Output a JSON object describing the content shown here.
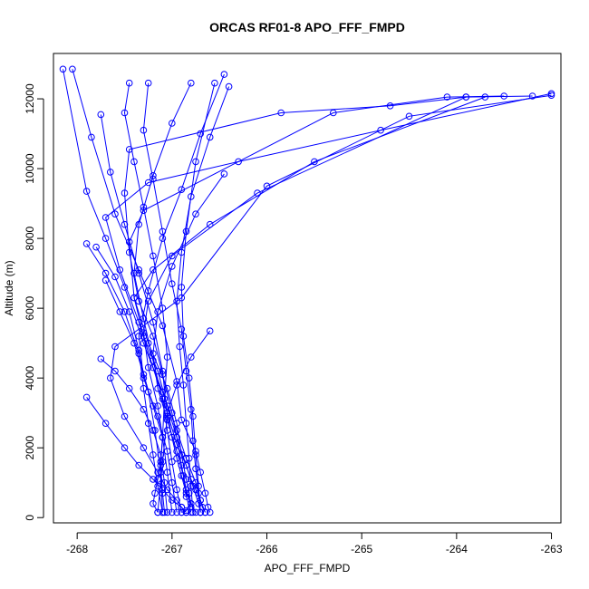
{
  "chart_data": {
    "type": "line",
    "title": "ORCAS RF01-8 APO_FFF_FMPD",
    "xlabel": "APO_FFF_FMPD",
    "ylabel": "Altitude (m)",
    "xlim": [
      -268.25,
      -262.9
    ],
    "ylim": [
      -150,
      13300
    ],
    "xticks": [
      -268,
      -267,
      -266,
      -265,
      -264,
      -263
    ],
    "yticks": [
      0,
      2000,
      4000,
      6000,
      8000,
      10000,
      12000
    ],
    "grid": false,
    "legend": "none",
    "colors": {
      "series": "#0000ff",
      "frame": "#000000",
      "background": "#ffffff"
    },
    "series": [
      {
        "x": [
          -268.05,
          -267.85,
          -267.6,
          -267.35,
          -267.1,
          -266.95,
          -266.9,
          -266.75,
          -266.7,
          -266.65,
          -266.62,
          -266.6
        ],
        "y": [
          12850,
          10900,
          8700,
          7100,
          5500,
          3900,
          2800,
          1900,
          1300,
          700,
          300,
          150
        ]
      },
      {
        "x": [
          -268.15,
          -267.9,
          -267.7,
          -267.5,
          -267.3,
          -267.1,
          -266.95,
          -266.85,
          -266.75,
          -266.7,
          -266.65
        ],
        "y": [
          12850,
          9350,
          8000,
          6600,
          5000,
          3600,
          2500,
          1700,
          1000,
          500,
          150
        ]
      },
      {
        "x": [
          -263.0,
          -264.8,
          -266.3,
          -267.25,
          -267.7,
          -267.55,
          -267.35,
          -267.2,
          -267.05,
          -266.95,
          -266.85,
          -266.8,
          -266.75,
          -266.7,
          -266.68,
          -266.65
        ],
        "y": [
          12150,
          11100,
          10200,
          9600,
          8600,
          7100,
          5600,
          4300,
          3000,
          2100,
          1500,
          1100,
          800,
          500,
          300,
          150
        ]
      },
      {
        "x": [
          -263.2,
          -263.9,
          -264.7,
          -265.85,
          -267.45,
          -267.5,
          -267.45,
          -267.35,
          -267.2,
          -267.1,
          -267.0,
          -266.95,
          -266.9,
          -266.85,
          -266.8
        ],
        "y": [
          12080,
          12050,
          11800,
          11600,
          10550,
          9300,
          7600,
          6200,
          5200,
          4100,
          3000,
          2300,
          1500,
          800,
          300
        ]
      },
      {
        "x": [
          -263.5,
          -264.1,
          -265.3,
          -267.3,
          -267.45,
          -267.4,
          -267.25,
          -267.05,
          -266.95,
          -266.9,
          -266.85,
          -266.82,
          -266.8,
          -266.85,
          -266.9
        ],
        "y": [
          12080,
          12050,
          11600,
          8800,
          7900,
          6300,
          5000,
          3700,
          2700,
          1800,
          1100,
          700,
          400,
          200,
          150
        ]
      },
      {
        "x": [
          -263.0,
          -264.5,
          -266.0,
          -266.9,
          -267.6,
          -267.65,
          -267.5,
          -267.3,
          -267.15,
          -267.05,
          -266.95,
          -266.9,
          -266.85
        ],
        "y": [
          12100,
          11500,
          9500,
          6300,
          4900,
          4000,
          2900,
          2000,
          1300,
          800,
          500,
          300,
          150
        ]
      },
      {
        "x": [
          -263.7,
          -265.5,
          -266.6,
          -267.2,
          -267.4,
          -267.3,
          -267.15,
          -267.05,
          -266.95,
          -266.85,
          -266.78,
          -266.72,
          -266.7
        ],
        "y": [
          12050,
          10200,
          8400,
          7100,
          6300,
          5200,
          4200,
          3200,
          2300,
          1500,
          900,
          400,
          150
        ]
      },
      {
        "x": [
          -263.9,
          -266.1,
          -267.0,
          -267.25,
          -267.3,
          -267.25,
          -267.15,
          -267.1,
          -267.12,
          -267.15,
          -267.18,
          -267.2,
          -267.15
        ],
        "y": [
          12050,
          9300,
          7500,
          6200,
          5300,
          4300,
          3200,
          2300,
          1600,
          1100,
          700,
          400,
          150
        ]
      },
      {
        "x": [
          -267.45,
          -267.5,
          -267.4,
          -267.3,
          -267.2,
          -267.1,
          -267.05,
          -267.08,
          -267.1,
          -267.12,
          -267.1,
          -267.08
        ],
        "y": [
          12450,
          11600,
          10200,
          8900,
          7500,
          6000,
          4600,
          3400,
          2300,
          1500,
          700,
          150
        ]
      },
      {
        "x": [
          -267.25,
          -267.3,
          -267.2,
          -267.1,
          -267.0,
          -266.9,
          -266.85,
          -266.8,
          -266.78,
          -266.75,
          -266.72,
          -266.7
        ],
        "y": [
          12450,
          11100,
          9700,
          8200,
          6700,
          5400,
          4200,
          3100,
          2200,
          1400,
          700,
          150
        ]
      },
      {
        "x": [
          -266.8,
          -267.0,
          -267.2,
          -267.35,
          -267.4,
          -267.3,
          -267.2,
          -267.1,
          -267.05,
          -267.0,
          -266.95,
          -266.9
        ],
        "y": [
          12450,
          11300,
          9800,
          8400,
          7000,
          5700,
          4500,
          3400,
          2500,
          1600,
          800,
          150
        ]
      },
      {
        "x": [
          -266.45,
          -266.7,
          -266.9,
          -267.1,
          -267.25,
          -267.35,
          -267.3,
          -267.15,
          -267.05,
          -267.0,
          -266.95
        ],
        "y": [
          12700,
          11000,
          9400,
          8000,
          6500,
          5200,
          4000,
          2900,
          1900,
          1000,
          150
        ]
      },
      {
        "x": [
          -266.4,
          -266.6,
          -266.8,
          -266.9,
          -266.95,
          -266.92,
          -266.88,
          -266.85,
          -266.82,
          -266.8,
          -266.78
        ],
        "y": [
          12350,
          10900,
          9200,
          7600,
          6200,
          4900,
          3800,
          2700,
          1700,
          900,
          150
        ]
      },
      {
        "x": [
          -266.45,
          -266.75,
          -267.0,
          -267.15,
          -267.2,
          -267.15,
          -267.05,
          -266.95,
          -266.88,
          -266.85,
          -266.8
        ],
        "y": [
          9850,
          8700,
          7200,
          5900,
          4700,
          3700,
          2800,
          1900,
          1200,
          600,
          150
        ]
      },
      {
        "x": [
          -266.55,
          -266.75,
          -266.85,
          -266.9,
          -266.88,
          -266.82,
          -266.78,
          -266.75,
          -266.72,
          -266.7
        ],
        "y": [
          12450,
          10200,
          8200,
          6600,
          5200,
          4000,
          2900,
          1800,
          900,
          150
        ]
      },
      {
        "x": [
          -266.6,
          -266.8,
          -266.95,
          -267.05,
          -267.0,
          -266.95,
          -266.9,
          -266.85,
          -266.8,
          -266.75
        ],
        "y": [
          5350,
          4600,
          3800,
          3000,
          2300,
          1700,
          1200,
          700,
          400,
          150
        ]
      },
      {
        "x": [
          -267.75,
          -267.65,
          -267.5,
          -267.35,
          -267.2,
          -267.1,
          -267.05,
          -267.1,
          -267.15
        ],
        "y": [
          11550,
          9900,
          8400,
          7000,
          5600,
          4200,
          2900,
          1600,
          150
        ]
      },
      {
        "x": [
          -267.9,
          -267.7,
          -267.5,
          -267.35,
          -267.2,
          -267.1,
          -267.0,
          -266.9,
          -266.85
        ],
        "y": [
          3450,
          2700,
          2000,
          1500,
          1100,
          800,
          500,
          300,
          150
        ]
      },
      {
        "x": [
          -267.7,
          -267.55,
          -267.4,
          -267.3,
          -267.2,
          -267.1,
          -267.05,
          -267.0
        ],
        "y": [
          6800,
          5900,
          5000,
          4100,
          3200,
          2300,
          1300,
          150
        ]
      },
      {
        "x": [
          -267.75,
          -267.6,
          -267.45,
          -267.3,
          -267.2,
          -267.12,
          -267.08,
          -267.05
        ],
        "y": [
          4550,
          4200,
          3700,
          3100,
          2500,
          1800,
          1000,
          150
        ]
      },
      {
        "x": [
          -267.8,
          -267.6,
          -267.45,
          -267.35,
          -267.3,
          -267.25,
          -267.2,
          -267.15,
          -267.1
        ],
        "y": [
          7750,
          6900,
          5900,
          4800,
          3700,
          2700,
          1800,
          900,
          150
        ]
      },
      {
        "x": [
          -267.9,
          -267.7,
          -267.5,
          -267.35,
          -267.25,
          -267.18,
          -267.12,
          -267.1
        ],
        "y": [
          7850,
          7000,
          5900,
          4700,
          3600,
          2500,
          1300,
          150
        ]
      }
    ]
  }
}
